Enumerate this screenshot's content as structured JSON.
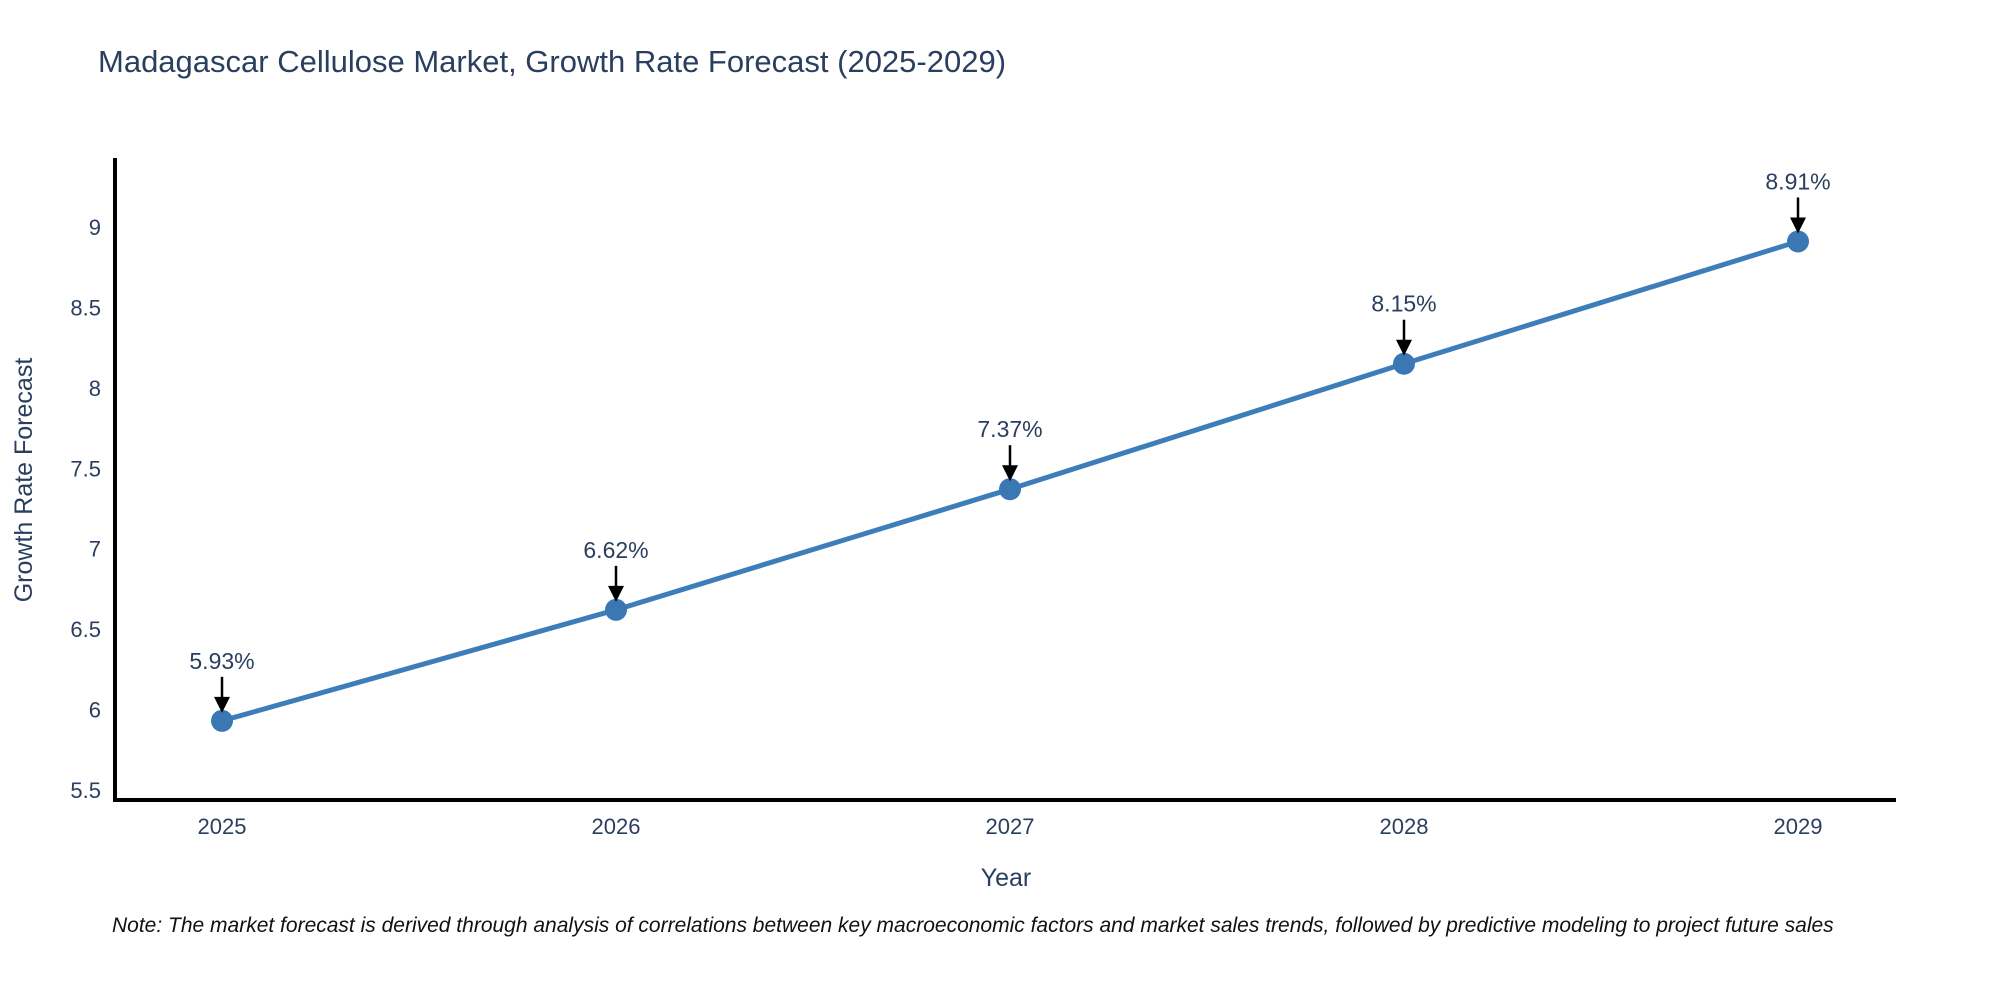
{
  "chart_data": {
    "type": "line",
    "title": "Madagascar Cellulose Market, Growth Rate Forecast (2025-2029)",
    "xlabel": "Year",
    "ylabel": "Growth Rate Forecast",
    "categories": [
      "2025",
      "2026",
      "2027",
      "2028",
      "2029"
    ],
    "values": [
      5.93,
      6.62,
      7.37,
      8.15,
      8.91
    ],
    "point_labels": [
      "5.93%",
      "6.62%",
      "7.37%",
      "8.15%",
      "8.91%"
    ],
    "y_tick_labels": [
      "5.5",
      "6",
      "6.5",
      "7",
      "7.5",
      "8",
      "8.5",
      "9"
    ],
    "y_tick_values": [
      5.5,
      6.0,
      6.5,
      7.0,
      7.5,
      8.0,
      8.5,
      9.0
    ],
    "ylim": [
      5.43,
      9.43
    ],
    "grid": false,
    "legend_position": "none",
    "annotation_style": "percentage labels with black downward arrows above each marker",
    "colors": {
      "line": "#3d7eba",
      "marker": "#3a77b3",
      "axis": "#000000",
      "arrow": "#000000",
      "tick_text": "#2a3f5f",
      "title_text": "#2a3f5f",
      "note_text": "#111111",
      "background": "#ffffff"
    }
  },
  "footer": {
    "note": "Note: The market forecast is derived through analysis of correlations between key macroeconomic factors and market sales trends, followed by predictive modeling to project future sales"
  }
}
